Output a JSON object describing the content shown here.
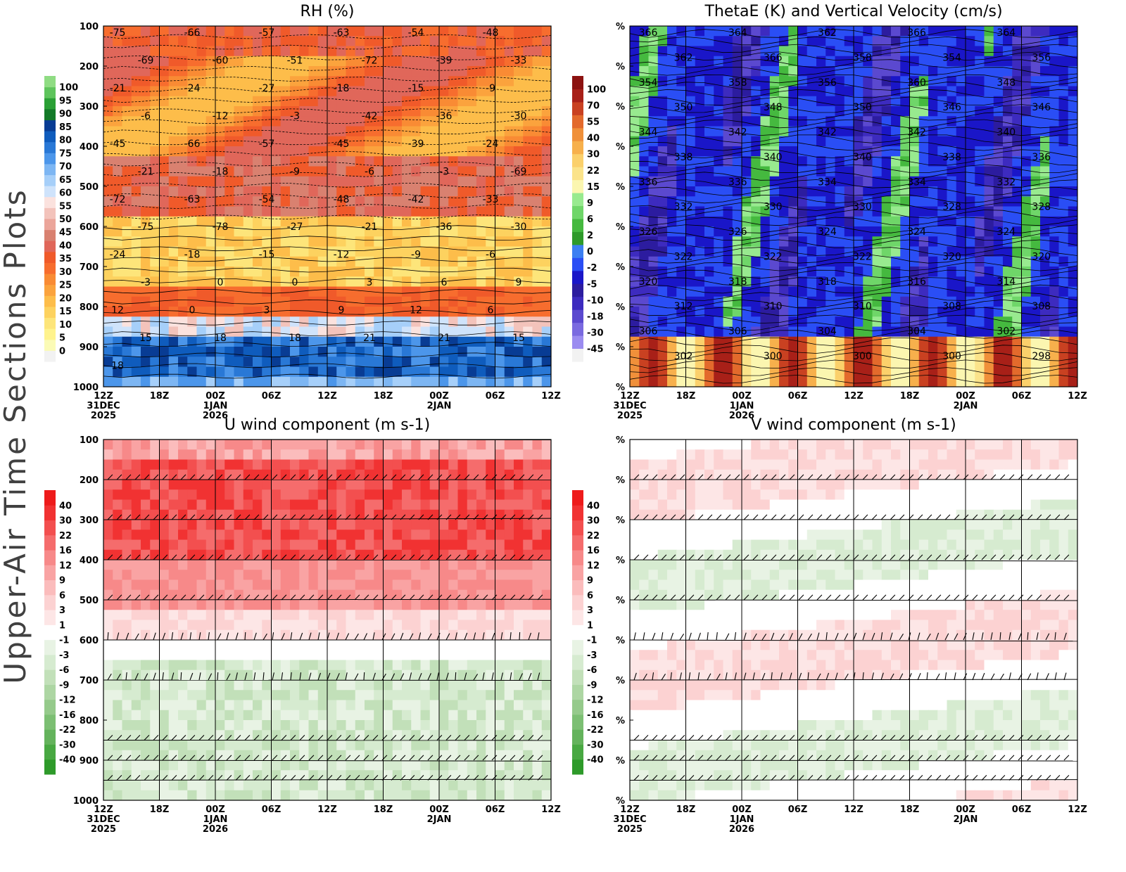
{
  "figure": {
    "side_title": "Upper-Air Time Sections Plots"
  },
  "time_axis": {
    "ticks": [
      "12Z",
      "18Z",
      "00Z",
      "06Z",
      "12Z",
      "18Z",
      "00Z",
      "06Z",
      "12Z"
    ],
    "date_labels": [
      {
        "tick_index": 0,
        "lines": [
          "31DEC",
          "2025"
        ]
      },
      {
        "tick_index": 2,
        "lines": [
          "1JAN",
          "2026"
        ]
      },
      {
        "tick_index": 6,
        "lines": [
          "2JAN"
        ]
      }
    ]
  },
  "pressure_axis": {
    "ticks": [
      "100",
      "200",
      "300",
      "400",
      "500",
      "600",
      "700",
      "800",
      "900",
      "1000"
    ],
    "unknown_ticks": [
      "%",
      "%",
      "%",
      "%",
      "%",
      "%",
      "%",
      "%",
      "%",
      "%"
    ]
  },
  "colors": {
    "grid": "#000000",
    "barb": "#000000",
    "contour": "#000000"
  },
  "chart_data": [
    {
      "type": "heatmap",
      "title": "RH (%)",
      "yaxis": "pressure",
      "colorbar": {
        "labels": [
          "100",
          "95",
          "90",
          "85",
          "80",
          "75",
          "70",
          "65",
          "60",
          "55",
          "50",
          "45",
          "40",
          "35",
          "30",
          "25",
          "20",
          "15",
          "10",
          "5",
          "0"
        ],
        "colors": [
          "#f2f2f2",
          "#fbfbb6",
          "#fff38d",
          "#fde57a",
          "#fdd25f",
          "#fdbd4a",
          "#fba33d",
          "#f98b34",
          "#f76d2e",
          "#f05a2a",
          "#e0675a",
          "#d98170",
          "#eba59a",
          "#f3c3bb",
          "#fbe2de",
          "#cfe3fb",
          "#a6cff9",
          "#7db6f3",
          "#4c96ea",
          "#2978d6",
          "#0f5cbd",
          "#083c94",
          "#137a28",
          "#2aa035",
          "#5ec45c",
          "#8fdc83"
        ],
        "colors_order": "bottom-to-top"
      },
      "contour_labels": {
        "dashed": [
          "-75",
          "-66",
          "-57",
          "-63",
          "-54",
          "-48",
          "-69",
          "-60",
          "-51",
          "-72",
          "-39",
          "-33",
          "-21",
          "-24",
          "-27",
          "-18",
          "-15",
          "-9",
          "-6",
          "-12",
          "-3",
          "-42",
          "-36",
          "-30",
          "-45",
          "-66",
          "-57",
          "-45",
          "-39",
          "-24",
          "-21",
          "-18",
          "-9",
          "-6",
          "-3",
          "-69",
          "-72",
          "-63",
          "-54",
          "-48",
          "-42",
          "-33",
          "-75",
          "-78",
          "-27",
          "-21",
          "-36",
          "-30",
          "-24",
          "-18",
          "-15",
          "-12",
          "-9",
          "-6",
          "-3"
        ],
        "solid": [
          "0",
          "0",
          "3",
          "6",
          "9",
          "12",
          "0",
          "3",
          "9",
          "12",
          "6",
          "15",
          "18",
          "18",
          "21",
          "21",
          "15",
          "18"
        ]
      }
    },
    {
      "type": "heatmap",
      "title": "ThetaE (K) and Vertical Velocity (cm/s)",
      "yaxis": "unknown",
      "colorbar": {
        "labels": [
          "100",
          "70",
          "55",
          "40",
          "30",
          "22",
          "15",
          "9",
          "6",
          "2",
          "0",
          "-2",
          "-5",
          "-10",
          "-18",
          "-30",
          "-45"
        ],
        "colors": [
          "#f2f2f2",
          "#9b8cf0",
          "#7a6ae0",
          "#5b49cf",
          "#3d2bbf",
          "#2c1c9f",
          "#1a16c8",
          "#2a4ef5",
          "#3c7ff2",
          "#2e9a2a",
          "#45b93f",
          "#6fd669",
          "#98ea8f",
          "#fbf6b0",
          "#fbe38a",
          "#fbd06b",
          "#f7b04c",
          "#f0903a",
          "#e36a2c",
          "#c94121",
          "#a82018",
          "#8c1210"
        ],
        "colors_order": "bottom-to-top"
      },
      "contour_labels": [
        "366",
        "364",
        "362",
        "366",
        "364",
        "362",
        "366",
        "358",
        "354",
        "356",
        "354",
        "358",
        "356",
        "360",
        "348",
        "350",
        "348",
        "350",
        "346",
        "346",
        "344",
        "342",
        "342",
        "342",
        "340",
        "338",
        "340",
        "340",
        "338",
        "336",
        "336",
        "336",
        "334",
        "334",
        "332",
        "332",
        "330",
        "330",
        "328",
        "328",
        "326",
        "326",
        "324",
        "324",
        "324",
        "322",
        "322",
        "322",
        "320",
        "320",
        "320",
        "318",
        "318",
        "316",
        "314",
        "312",
        "310",
        "310",
        "308",
        "308",
        "306",
        "306",
        "304",
        "304",
        "302",
        "302",
        "300",
        "300",
        "300",
        "298"
      ]
    },
    {
      "type": "heatmap",
      "title": "U wind component (m s-1)",
      "yaxis": "pressure",
      "colorbar": {
        "labels": [
          "40",
          "30",
          "22",
          "16",
          "12",
          "9",
          "6",
          "3",
          "1",
          "-1",
          "-3",
          "-6",
          "-9",
          "-12",
          "-16",
          "-22",
          "-30",
          "-40"
        ],
        "colors": [
          "#2e9a2a",
          "#48a842",
          "#64b35c",
          "#7cbf73",
          "#95ca8b",
          "#add6a3",
          "#c2e0b9",
          "#d6ebd0",
          "#e8f3e4",
          "#ffffff",
          "#fde6e6",
          "#fcd2d2",
          "#fbbcbc",
          "#f9a3a3",
          "#f78989",
          "#f56c6c",
          "#f34f4f",
          "#f13232",
          "#ee1b1b"
        ],
        "colors_order": "bottom-to-top"
      }
    },
    {
      "type": "heatmap",
      "title": "V wind component (m s-1)",
      "yaxis": "unknown",
      "colorbar": {
        "labels": [
          "40",
          "30",
          "22",
          "16",
          "12",
          "9",
          "6",
          "3",
          "1",
          "-1",
          "-3",
          "-6",
          "-9",
          "-12",
          "-16",
          "-22",
          "-30",
          "-40"
        ],
        "colors": [
          "#2e9a2a",
          "#48a842",
          "#64b35c",
          "#7cbf73",
          "#95ca8b",
          "#add6a3",
          "#c2e0b9",
          "#d6ebd0",
          "#e8f3e4",
          "#ffffff",
          "#fde6e6",
          "#fcd2d2",
          "#fbbcbc",
          "#f9a3a3",
          "#f78989",
          "#f56c6c",
          "#f34f4f",
          "#f13232",
          "#ee1b1b"
        ],
        "colors_order": "bottom-to-top"
      }
    }
  ]
}
